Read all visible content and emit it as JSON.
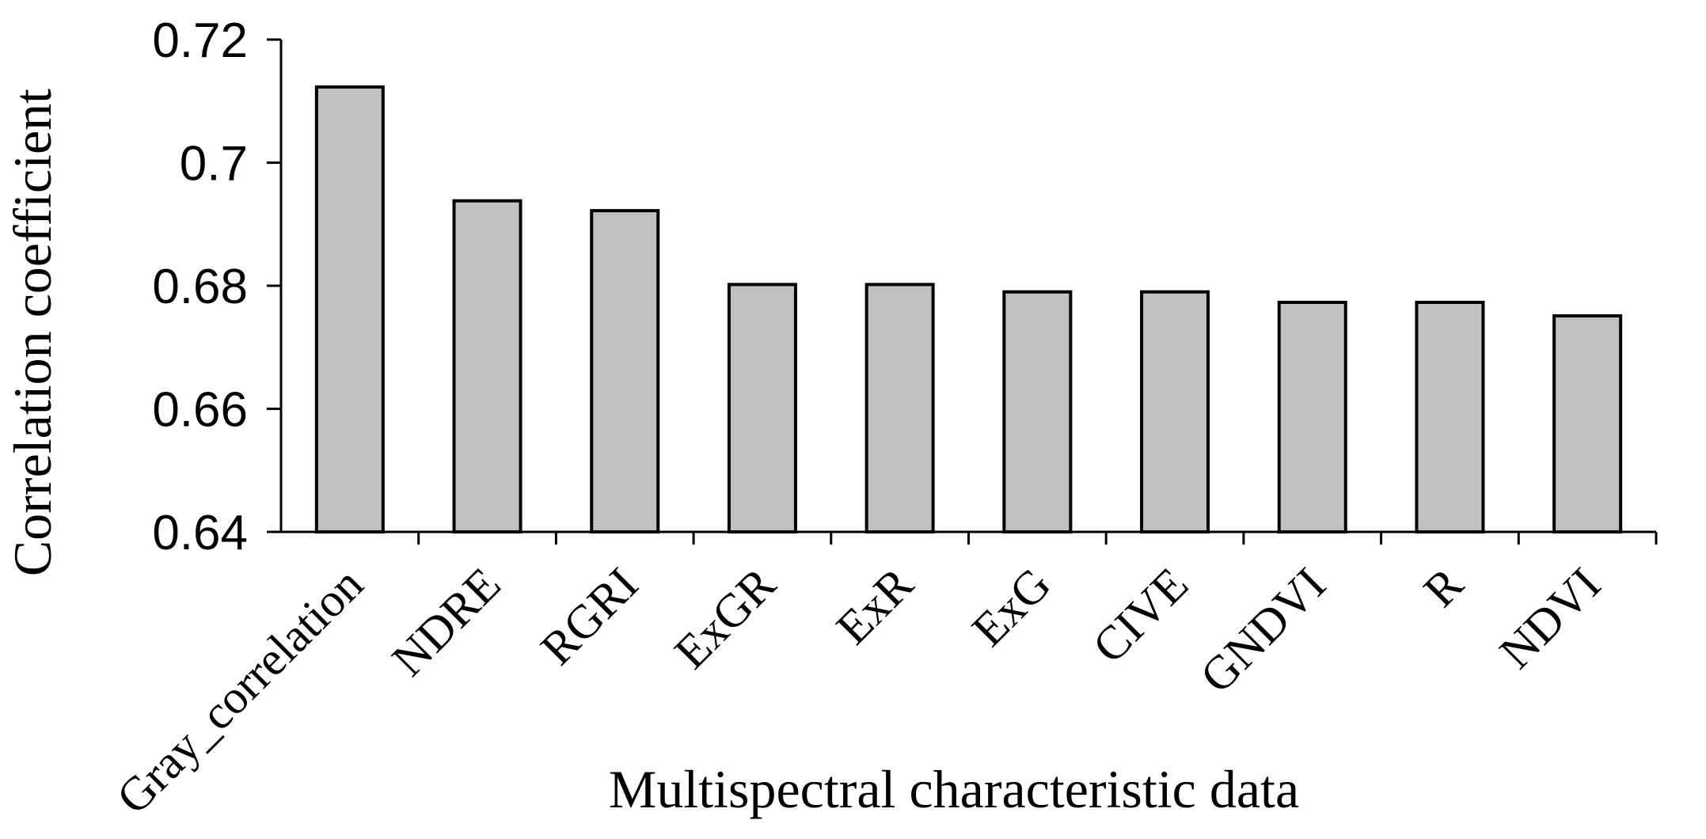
{
  "chart_data": {
    "type": "bar",
    "title": "",
    "xlabel": "Multispectral characteristic data",
    "ylabel": "Correlation coefficient",
    "ylim": [
      0.64,
      0.72
    ],
    "yticks": [
      "0.64",
      "0.66",
      "0.68",
      "0.7",
      "0.72"
    ],
    "ytick_values": [
      0.64,
      0.66,
      0.68,
      0.7,
      0.72
    ],
    "categories": [
      "Gray_correlation",
      "NDRE",
      "RGRI",
      "ExGR",
      "ExR",
      "ExG",
      "CIVE",
      "GNDVI",
      "R",
      "NDVI"
    ],
    "values": [
      0.7123,
      0.6938,
      0.6922,
      0.6802,
      0.6802,
      0.679,
      0.679,
      0.6773,
      0.6773,
      0.6751
    ],
    "bar_color": "#c0c0c0",
    "bar_edge_color": "#000000",
    "grid": false,
    "legend": "none"
  }
}
